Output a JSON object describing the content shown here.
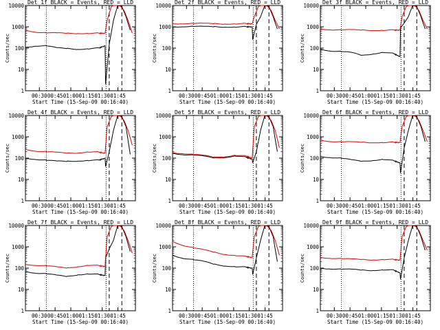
{
  "colors": {
    "events": "#000000",
    "lld": "#dd0000",
    "background": "#ffffff"
  },
  "y_axis_label": "Counts/sec",
  "x_axis_label": "Start Time (15-Sep-09 00:16:40)",
  "x_tick_labels": [
    "00:30",
    "00:45",
    "01:00",
    "01:15",
    "01:30",
    "01:45"
  ],
  "y_tick_labels": [
    "1",
    "10",
    "100",
    "1000",
    "10000"
  ],
  "chart_data": [
    {
      "type": "line",
      "title": "Det 1f BLACK = Events, RED = LLD",
      "xlabel": "Start Time (15-Sep-09 00:16:40)",
      "ylabel": "Counts/sec",
      "x_range_min": [
        0,
        105
      ],
      "y_range": [
        1,
        10000
      ],
      "y_scale": "log",
      "x_ticks_min": [
        13.3,
        28.3,
        43.3,
        58.3,
        73.3,
        88.3
      ],
      "vertical_dotted_min": [
        20,
        77
      ],
      "vertical_dashed_min": [
        80,
        92
      ],
      "series": [
        {
          "name": "Events",
          "color": "#000000",
          "x": [
            0,
            10,
            20,
            30,
            40,
            50,
            60,
            70,
            76,
            76.5,
            80,
            84,
            88,
            92,
            96,
            100
          ],
          "y": [
            110,
            130,
            130,
            100,
            95,
            90,
            95,
            100,
            130,
            2,
            150,
            2000,
            10000,
            9000,
            3000,
            700
          ]
        },
        {
          "name": "LLD",
          "color": "#dd0000",
          "x": [
            0,
            10,
            20,
            30,
            40,
            50,
            60,
            70,
            76,
            78,
            82,
            86,
            90,
            94,
            98,
            102
          ],
          "y": [
            700,
            580,
            520,
            500,
            495,
            500,
            500,
            495,
            500,
            2000,
            9000,
            11000,
            10000,
            6000,
            2000,
            500
          ]
        }
      ]
    },
    {
      "type": "line",
      "title": "Det 2f BLACK = Events, RED = LLD",
      "xlabel": "Start Time (15-Sep-09 00:16:40)",
      "ylabel": "Counts/sec",
      "x_range_min": [
        0,
        105
      ],
      "y_range": [
        1,
        10000
      ],
      "y_scale": "log",
      "x_ticks_min": [
        13.3,
        28.3,
        43.3,
        58.3,
        73.3,
        88.3
      ],
      "vertical_dotted_min": [
        20,
        77
      ],
      "vertical_dashed_min": [
        80,
        92
      ],
      "series": [
        {
          "name": "Events",
          "color": "#000000",
          "x": [
            0,
            10,
            20,
            30,
            40,
            50,
            60,
            70,
            76,
            76.5,
            80,
            84,
            88,
            92,
            96,
            100
          ],
          "y": [
            1000,
            1050,
            1050,
            1000,
            1000,
            1000,
            1000,
            1000,
            1000,
            250,
            1300,
            3000,
            10000,
            9000,
            3000,
            800
          ]
        },
        {
          "name": "LLD",
          "color": "#dd0000",
          "x": [
            0,
            10,
            20,
            30,
            40,
            50,
            60,
            70,
            76,
            78,
            82,
            86,
            90,
            94,
            98,
            102
          ],
          "y": [
            1400,
            1450,
            1450,
            1400,
            1400,
            1400,
            1400,
            1400,
            1400,
            3000,
            9000,
            11000,
            10000,
            6000,
            2000,
            800
          ]
        }
      ]
    },
    {
      "type": "line",
      "title": "Det 3f BLACK = Events, RED = LLD",
      "xlabel": "Start Time (15-Sep-09 00:16:40)",
      "ylabel": "Counts/sec",
      "x_range_min": [
        0,
        105
      ],
      "y_range": [
        1,
        10000
      ],
      "y_scale": "log",
      "x_ticks_min": [
        13.3,
        28.3,
        43.3,
        58.3,
        73.3,
        88.3
      ],
      "vertical_dotted_min": [
        20,
        77
      ],
      "vertical_dashed_min": [
        80,
        92
      ],
      "series": [
        {
          "name": "Events",
          "color": "#000000",
          "x": [
            0,
            10,
            20,
            30,
            40,
            50,
            60,
            70,
            76,
            76.5,
            80,
            84,
            88,
            92,
            96,
            100
          ],
          "y": [
            90,
            75,
            70,
            60,
            45,
            55,
            65,
            55,
            40,
            900,
            1500,
            3000,
            10000,
            9000,
            3000,
            800
          ]
        },
        {
          "name": "LLD",
          "color": "#dd0000",
          "x": [
            0,
            10,
            20,
            30,
            40,
            50,
            60,
            70,
            76,
            78,
            82,
            86,
            90,
            94,
            98,
            102
          ],
          "y": [
            800,
            750,
            720,
            700,
            700,
            700,
            700,
            700,
            700,
            3000,
            9000,
            11000,
            10000,
            6000,
            2000,
            800
          ]
        }
      ]
    },
    {
      "type": "line",
      "title": "Det 4f BLACK = Events, RED = LLD",
      "xlabel": "Start Time (15-Sep-09 00:16:40)",
      "ylabel": "Counts/sec",
      "x_range_min": [
        0,
        105
      ],
      "y_range": [
        1,
        10000
      ],
      "y_scale": "log",
      "x_ticks_min": [
        13.3,
        28.3,
        43.3,
        58.3,
        73.3,
        88.3
      ],
      "vertical_dotted_min": [
        20,
        77
      ],
      "vertical_dashed_min": [
        80,
        92
      ],
      "series": [
        {
          "name": "Events",
          "color": "#000000",
          "x": [
            0,
            10,
            20,
            30,
            40,
            50,
            60,
            70,
            76,
            76.5,
            80,
            84,
            88,
            92,
            96,
            100
          ],
          "y": [
            100,
            90,
            80,
            70,
            70,
            75,
            80,
            80,
            100,
            40,
            200,
            2000,
            10000,
            9000,
            3000,
            150
          ]
        },
        {
          "name": "LLD",
          "color": "#dd0000",
          "x": [
            0,
            10,
            20,
            30,
            40,
            50,
            60,
            70,
            76,
            78,
            82,
            86,
            90,
            94,
            98,
            102
          ],
          "y": [
            260,
            220,
            200,
            180,
            170,
            180,
            200,
            190,
            170,
            3000,
            9000,
            11000,
            10000,
            6000,
            2000,
            400
          ]
        }
      ]
    },
    {
      "type": "line",
      "title": "Det 5f BLACK = Events, RED = LLD",
      "xlabel": "Start Time (15-Sep-09 00:16:40)",
      "ylabel": "Counts/sec",
      "x_range_min": [
        0,
        105
      ],
      "y_range": [
        1,
        10000
      ],
      "y_scale": "log",
      "x_ticks_min": [
        13.3,
        28.3,
        43.3,
        58.3,
        73.3,
        88.3
      ],
      "vertical_dotted_min": [
        20,
        77
      ],
      "vertical_dashed_min": [
        80,
        92
      ],
      "series": [
        {
          "name": "Events",
          "color": "#000000",
          "x": [
            0,
            10,
            20,
            30,
            40,
            50,
            60,
            70,
            76,
            76.5,
            80,
            84,
            88,
            92,
            96,
            100
          ],
          "y": [
            170,
            150,
            140,
            120,
            100,
            110,
            130,
            110,
            90,
            60,
            200,
            2000,
            10000,
            9000,
            3000,
            200
          ]
        },
        {
          "name": "LLD",
          "color": "#dd0000",
          "x": [
            0,
            10,
            20,
            30,
            40,
            50,
            60,
            70,
            76,
            78,
            82,
            86,
            90,
            94,
            98,
            102
          ],
          "y": [
            180,
            170,
            150,
            130,
            110,
            120,
            140,
            125,
            100,
            3000,
            9000,
            11000,
            10000,
            6000,
            2000,
            300
          ]
        }
      ]
    },
    {
      "type": "line",
      "title": "Det 6f BLACK = Events, RED = LLD",
      "xlabel": "Start Time (15-Sep-09 00:16:40)",
      "ylabel": "Counts/sec",
      "x_range_min": [
        0,
        105
      ],
      "y_range": [
        1,
        10000
      ],
      "y_scale": "log",
      "x_ticks_min": [
        13.3,
        28.3,
        43.3,
        58.3,
        73.3,
        88.3
      ],
      "vertical_dotted_min": [
        20,
        77
      ],
      "vertical_dashed_min": [
        80,
        92
      ],
      "series": [
        {
          "name": "Events",
          "color": "#000000",
          "x": [
            0,
            10,
            20,
            30,
            40,
            50,
            60,
            70,
            76,
            76.5,
            80,
            84,
            88,
            92,
            96,
            100
          ],
          "y": [
            120,
            110,
            100,
            80,
            70,
            80,
            90,
            75,
            60,
            20,
            300,
            2000,
            10000,
            9000,
            3000,
            600
          ]
        },
        {
          "name": "LLD",
          "color": "#dd0000",
          "x": [
            0,
            10,
            20,
            30,
            40,
            50,
            60,
            70,
            76,
            78,
            82,
            86,
            90,
            94,
            98,
            102
          ],
          "y": [
            700,
            620,
            580,
            560,
            550,
            550,
            550,
            550,
            540,
            3000,
            9000,
            11000,
            10000,
            6000,
            2000,
            600
          ]
        }
      ]
    },
    {
      "type": "line",
      "title": "Det 7f BLACK = Events, RED = LLD",
      "xlabel": "Start Time (15-Sep-09 00:16:40)",
      "ylabel": "Counts/sec",
      "x_range_min": [
        0,
        105
      ],
      "y_range": [
        1,
        10000
      ],
      "y_scale": "log",
      "x_ticks_min": [
        13.3,
        28.3,
        43.3,
        58.3,
        73.3,
        88.3
      ],
      "vertical_dotted_min": [
        20,
        77
      ],
      "vertical_dashed_min": [
        80,
        92
      ],
      "series": [
        {
          "name": "Events",
          "color": "#000000",
          "x": [
            0,
            10,
            20,
            30,
            40,
            50,
            60,
            70,
            76,
            76.5,
            80,
            84,
            88,
            92,
            96,
            100
          ],
          "y": [
            70,
            60,
            55,
            45,
            40,
            50,
            55,
            50,
            45,
            300,
            800,
            2000,
            10000,
            9000,
            3000,
            600
          ]
        },
        {
          "name": "LLD",
          "color": "#dd0000",
          "x": [
            0,
            10,
            20,
            30,
            40,
            50,
            60,
            70,
            76,
            78,
            82,
            86,
            90,
            94,
            98,
            102
          ],
          "y": [
            150,
            140,
            130,
            110,
            100,
            120,
            140,
            130,
            120,
            3000,
            9000,
            11000,
            10000,
            6000,
            2000,
            500
          ]
        }
      ]
    },
    {
      "type": "line",
      "title": "Det 8f BLACK = Events, RED = LLD",
      "xlabel": "Start Time (15-Sep-09 00:16:40)",
      "ylabel": "Counts/sec",
      "x_range_min": [
        0,
        105
      ],
      "y_range": [
        1,
        10000
      ],
      "y_scale": "log",
      "x_ticks_min": [
        13.3,
        28.3,
        43.3,
        58.3,
        73.3,
        88.3
      ],
      "vertical_dotted_min": [
        20,
        77
      ],
      "vertical_dashed_min": [
        80,
        92
      ],
      "series": [
        {
          "name": "Events",
          "color": "#000000",
          "x": [
            0,
            10,
            20,
            30,
            40,
            50,
            60,
            70,
            76,
            76.5,
            80,
            84,
            88,
            92,
            96,
            100
          ],
          "y": [
            400,
            300,
            250,
            200,
            150,
            130,
            120,
            110,
            100,
            50,
            300,
            2000,
            10000,
            9000,
            3000,
            200
          ]
        },
        {
          "name": "LLD",
          "color": "#dd0000",
          "x": [
            0,
            10,
            20,
            30,
            40,
            50,
            60,
            70,
            76,
            78,
            82,
            86,
            90,
            94,
            98,
            102
          ],
          "y": [
            1800,
            1200,
            900,
            700,
            550,
            450,
            400,
            350,
            320,
            3000,
            9000,
            11000,
            10000,
            6000,
            2000,
            400
          ]
        }
      ]
    },
    {
      "type": "line",
      "title": "Det 9f BLACK = Events, RED = LLD",
      "xlabel": "Start Time (15-Sep-09 00:16:40)",
      "ylabel": "Counts/sec",
      "x_range_min": [
        0,
        105
      ],
      "y_range": [
        1,
        10000
      ],
      "y_scale": "log",
      "x_ticks_min": [
        13.3,
        28.3,
        43.3,
        58.3,
        73.3,
        88.3
      ],
      "vertical_dotted_min": [
        20,
        77
      ],
      "vertical_dashed_min": [
        80,
        92
      ],
      "series": [
        {
          "name": "Events",
          "color": "#000000",
          "x": [
            0,
            10,
            20,
            30,
            40,
            50,
            60,
            70,
            76,
            76.5,
            80,
            84,
            88,
            92,
            96,
            100
          ],
          "y": [
            100,
            95,
            90,
            85,
            80,
            80,
            85,
            80,
            60,
            30,
            300,
            2000,
            10000,
            9000,
            3000,
            700
          ]
        },
        {
          "name": "LLD",
          "color": "#dd0000",
          "x": [
            0,
            10,
            20,
            30,
            40,
            50,
            60,
            70,
            76,
            78,
            82,
            86,
            90,
            94,
            98,
            102
          ],
          "y": [
            320,
            300,
            280,
            260,
            250,
            250,
            260,
            250,
            240,
            3000,
            9000,
            11000,
            10000,
            6000,
            2000,
            700
          ]
        }
      ]
    }
  ]
}
